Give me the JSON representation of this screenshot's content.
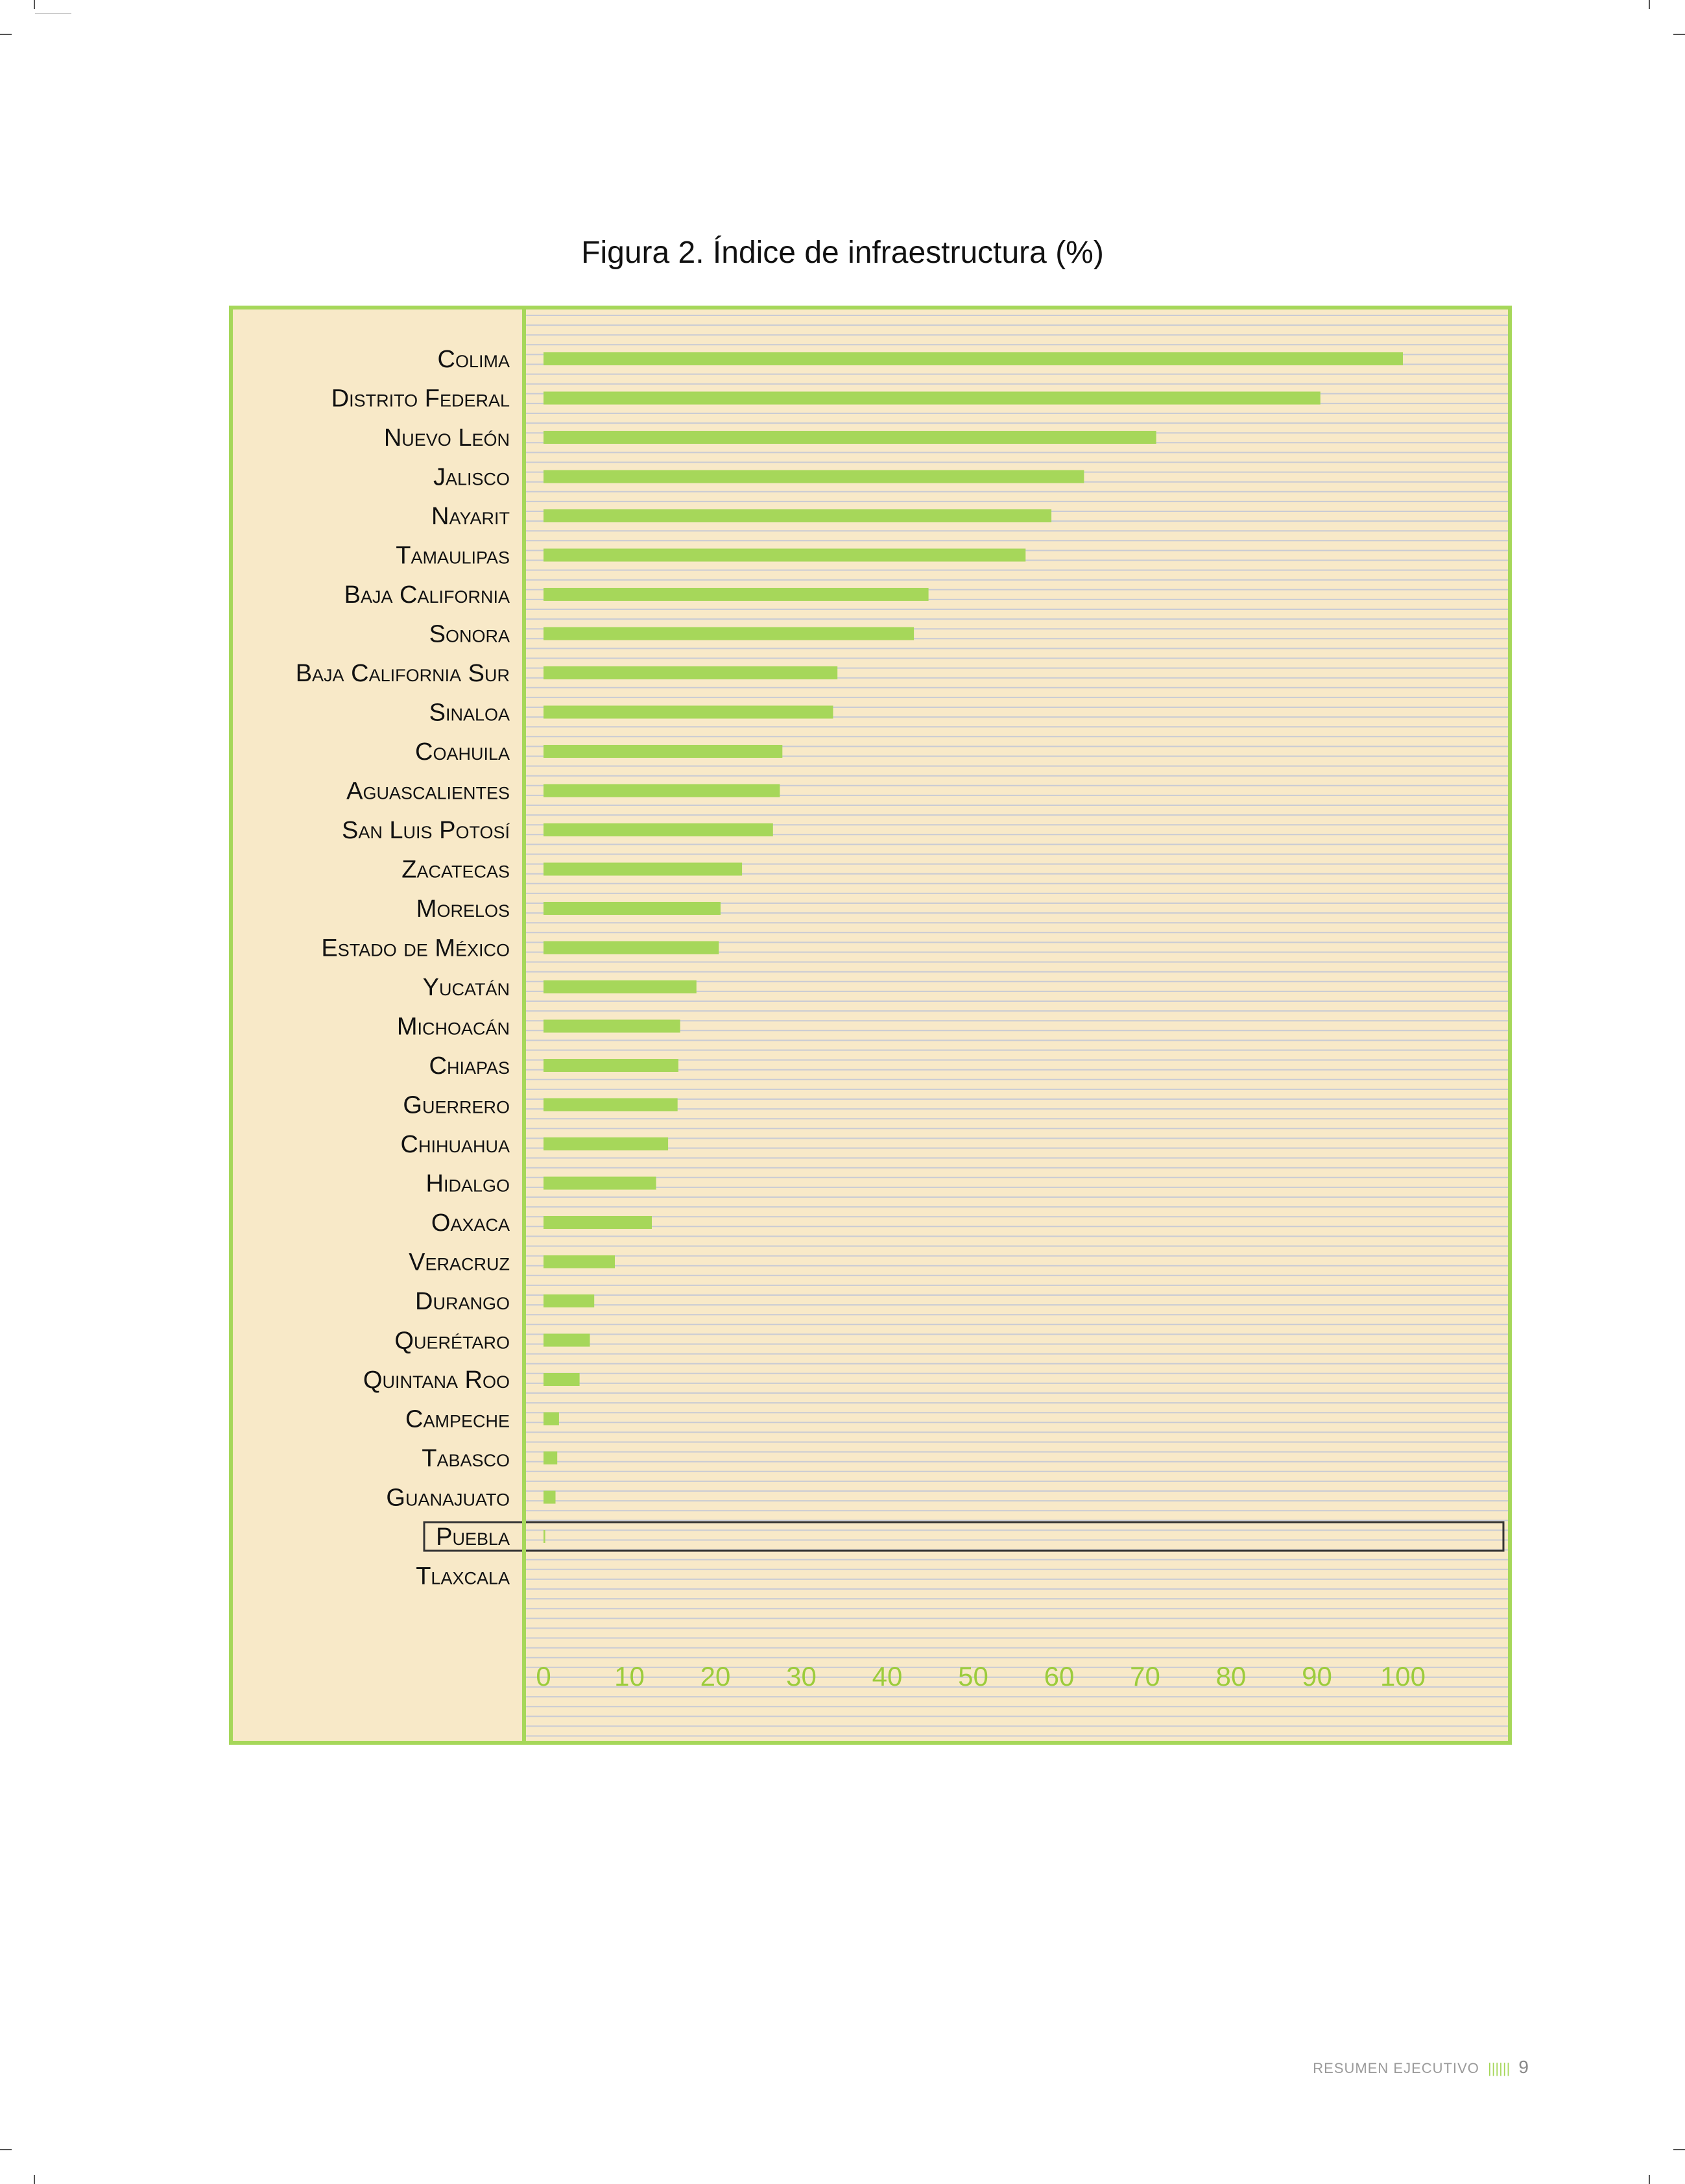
{
  "chart_data": {
    "type": "bar",
    "orientation": "horizontal",
    "title": "Figura 2. Índice de infraestructura (%)",
    "categories": [
      "Colima",
      "Distrito Federal",
      "Nuevo León",
      "Jalisco",
      "Nayarit",
      "Tamaulipas",
      "Baja California",
      "Sonora",
      "Baja California Sur",
      "Sinaloa",
      "Coahuila",
      "Aguascalientes",
      "San Luis Potosí",
      "Zacatecas",
      "Morelos",
      "Estado de México",
      "Yucatán",
      "Michoacán",
      "Chiapas",
      "Guerrero",
      "Chihuahua",
      "Hidalgo",
      "Oaxaca",
      "Veracruz",
      "Durango",
      "Querétaro",
      "Quintana Roo",
      "Campeche",
      "Tabasco",
      "Guanajuato",
      "Puebla",
      "Tlaxcala"
    ],
    "values": [
      100,
      90.4,
      71.3,
      62.9,
      59.1,
      56.1,
      44.8,
      43.1,
      34.2,
      33.7,
      27.8,
      27.5,
      26.7,
      23.1,
      20.6,
      20.4,
      17.8,
      15.9,
      15.7,
      15.6,
      14.5,
      13.1,
      12.6,
      8.3,
      5.9,
      5.4,
      4.2,
      1.8,
      1.6,
      1.4,
      0.2,
      0
    ],
    "xticks": [
      "0",
      "10",
      "20",
      "30",
      "40",
      "50",
      "60",
      "70",
      "80",
      "90",
      "100"
    ],
    "xlim": [
      0,
      100
    ],
    "highlight": "Puebla",
    "colors": {
      "bar": "#a6d75a",
      "panel_background": "#f8e9c8",
      "frame": "#a6d75a",
      "gridline": "#c9cbd4",
      "tick_label": "#9ccc3c"
    }
  },
  "footer": {
    "section": "RESUMEN EJECUTIVO",
    "bars": "||||||",
    "page": "9"
  }
}
